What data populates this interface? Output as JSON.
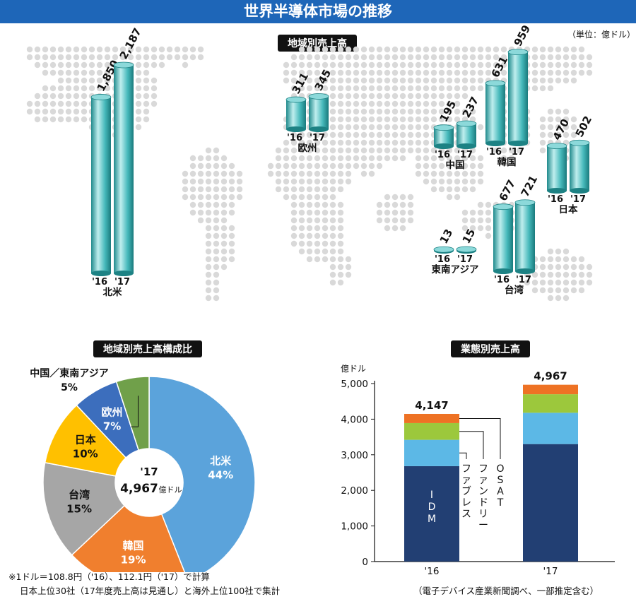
{
  "title": "世界半導体市場の推移",
  "unit_note": "（単位：億ドル）",
  "chart_data": [
    {
      "type": "bar",
      "title": "地域別売上高",
      "categories": [
        "北米",
        "欧州",
        "中国",
        "韓国",
        "日本",
        "東南アジア",
        "台湾"
      ],
      "x_tick_labels": [
        "'16",
        "'17"
      ],
      "series": [
        {
          "name": "'16",
          "values": [
            1850,
            311,
            195,
            631,
            470,
            13,
            677
          ]
        },
        {
          "name": "'17",
          "values": [
            2187,
            345,
            237,
            959,
            502,
            15,
            721
          ]
        }
      ],
      "value_labels": [
        [
          "1,850",
          "2,187"
        ],
        [
          "311",
          "345"
        ],
        [
          "195",
          "237"
        ],
        [
          "631",
          "959"
        ],
        [
          "470",
          "502"
        ],
        [
          "13",
          "15"
        ],
        [
          "677",
          "721"
        ]
      ]
    },
    {
      "type": "pie",
      "title": "地域別売上高構成比",
      "center_label": "'17",
      "center_value": "4,967",
      "center_unit": "億ドル",
      "slices": [
        {
          "label": "北米",
          "percent": 44,
          "pct_text": "44%",
          "color": "#5ba3db"
        },
        {
          "label": "韓国",
          "percent": 19,
          "pct_text": "19%",
          "color": "#f07f2e"
        },
        {
          "label": "台湾",
          "percent": 15,
          "pct_text": "15%",
          "color": "#a6a6a6"
        },
        {
          "label": "日本",
          "percent": 10,
          "pct_text": "10%",
          "color": "#ffc000"
        },
        {
          "label": "欧州",
          "percent": 7,
          "pct_text": "7%",
          "color": "#3c6ebd"
        },
        {
          "label": "中国／東南アジア",
          "percent": 5,
          "pct_text": "5%",
          "color": "#70a04a"
        }
      ]
    },
    {
      "type": "bar",
      "stacked": true,
      "title": "業態別売上高",
      "ylabel": "億ドル",
      "ylim": [
        0,
        5000
      ],
      "y_ticks": [
        "0",
        "1,000",
        "2,000",
        "3,000",
        "4,000",
        "5,000"
      ],
      "categories": [
        "'16",
        "'17"
      ],
      "totals": [
        "4,147",
        "4,967"
      ],
      "series": [
        {
          "name": "IDM",
          "values": [
            2680,
            3300
          ],
          "color": "#223f73"
        },
        {
          "name": "ファブレス",
          "values": [
            740,
            880
          ],
          "color": "#5cb8e6"
        },
        {
          "name": "ファンドリー",
          "values": [
            470,
            520
          ],
          "color": "#9cc83c"
        },
        {
          "name": "OSAT",
          "values": [
            257,
            267
          ],
          "color": "#ee7224"
        }
      ]
    }
  ],
  "notes": [
    "※1ドル＝108.8円（'16）、112.1円（'17）で計算",
    "日本上位30社（17年度売上高は見通し）と海外上位100社で集計"
  ],
  "source": "（電子デバイス産業新聞調べ、一部推定含む）",
  "colors": {
    "title_bg": "#1e66b8",
    "cylinder": "#3fb6b9",
    "map_dot": "#d9d9d9"
  }
}
